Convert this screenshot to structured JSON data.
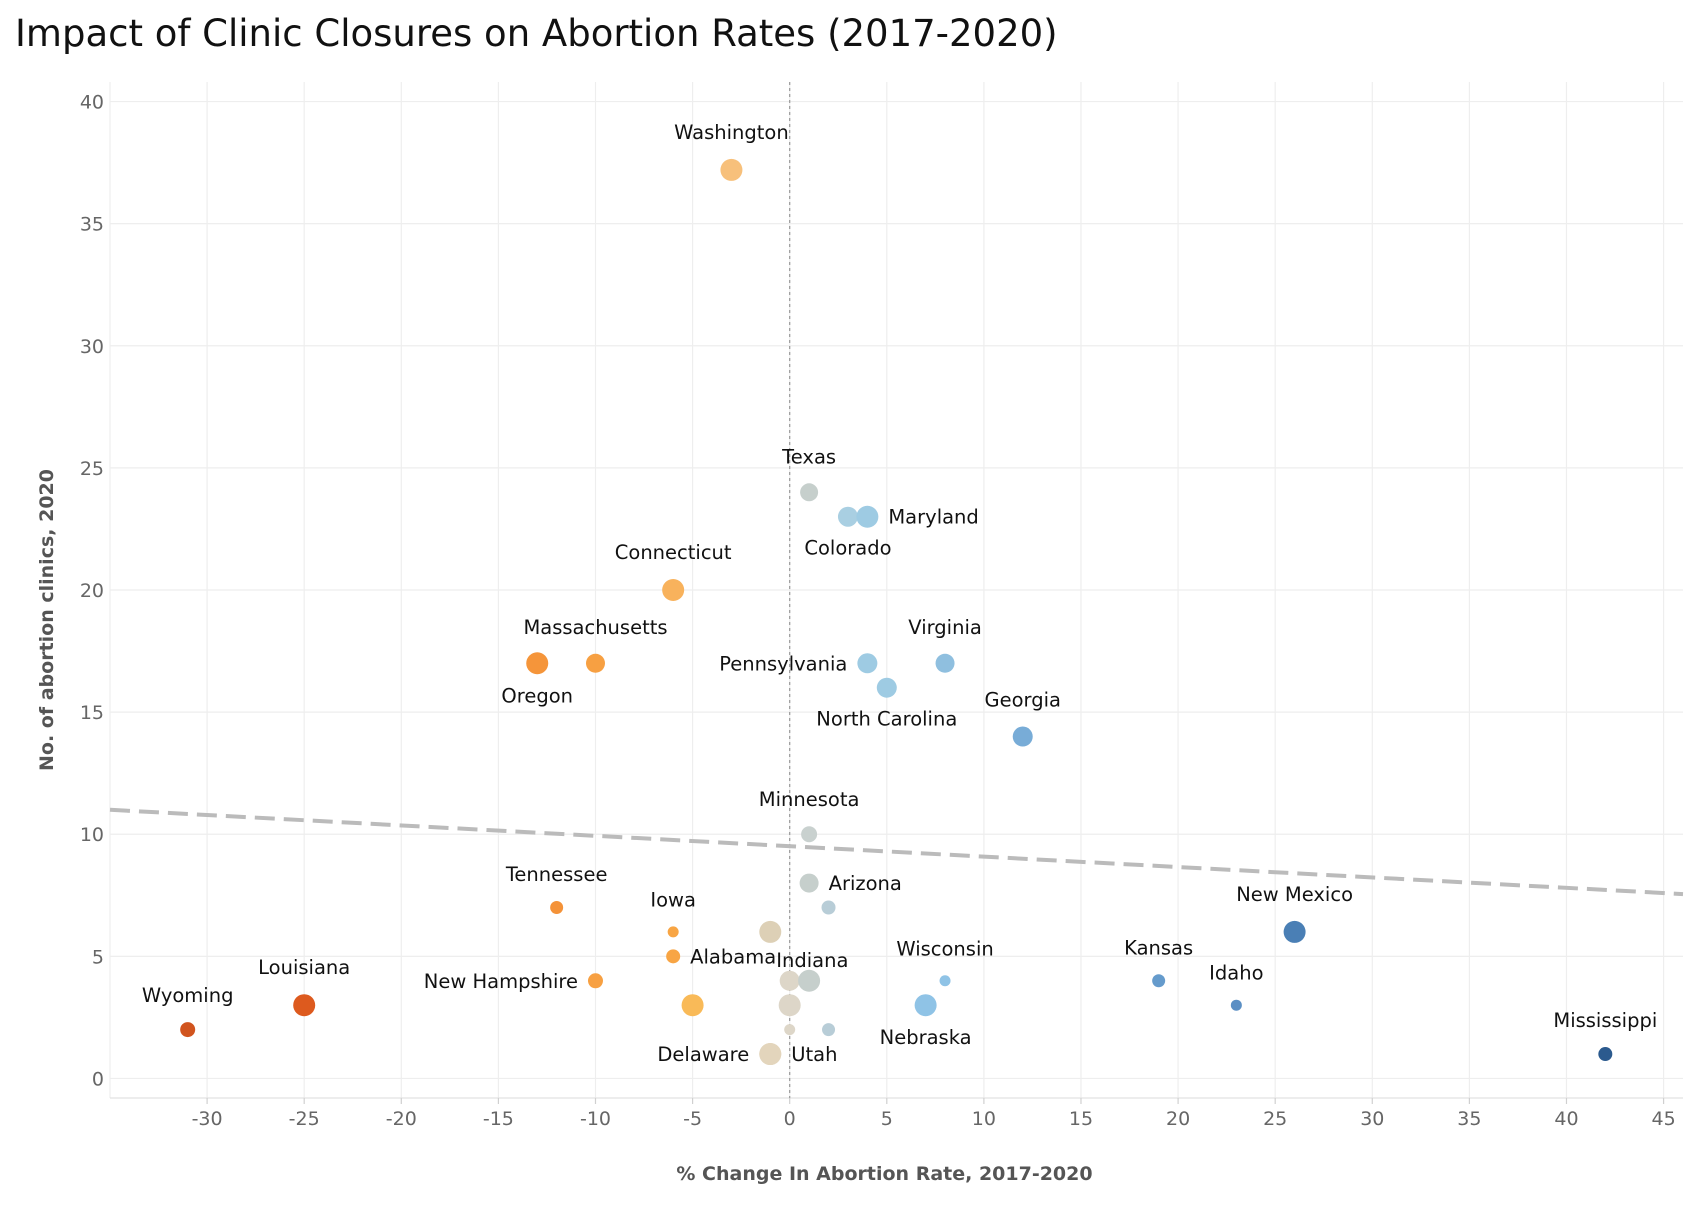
{
  "chart_data": {
    "type": "scatter",
    "title": "Impact of Clinic Closures on Abortion Rates (2017-2020)",
    "xlabel": "% Change In Abortion Rate, 2017-2020",
    "ylabel": "No. of abortion clinics, 2020",
    "xlim": [
      -35,
      46
    ],
    "ylim": [
      -0.8,
      40.8
    ],
    "x_ticks": [
      -30,
      -25,
      -20,
      -15,
      -10,
      -5,
      0,
      5,
      10,
      15,
      20,
      25,
      30,
      35,
      40,
      45
    ],
    "y_ticks": [
      0,
      5,
      10,
      15,
      20,
      25,
      30,
      35,
      40
    ],
    "grid": true,
    "reference_line": {
      "x": 0,
      "style": "dotted"
    },
    "trend_line": {
      "style": "dashed",
      "color": "#bbbbbb",
      "from": [
        -35,
        11.0
      ],
      "to": [
        46,
        7.55
      ]
    },
    "points": [
      {
        "label": "Washington",
        "x": -3,
        "y": 37.2,
        "size": 11,
        "color": "#f7c07b",
        "label_pos": "above"
      },
      {
        "label": "Texas",
        "x": 1,
        "y": 24,
        "size": 9,
        "color": "#c6cfcc",
        "label_pos": "above"
      },
      {
        "label": "Colorado",
        "x": 3,
        "y": 23,
        "size": 10,
        "color": "#a9cfe2",
        "label_pos": "below"
      },
      {
        "label": "Maryland",
        "x": 4,
        "y": 23,
        "size": 11,
        "color": "#9ecbe3",
        "label_pos": "right"
      },
      {
        "label": "Connecticut",
        "x": -6,
        "y": 20,
        "size": 11,
        "color": "#f8b25c",
        "label_pos": "above"
      },
      {
        "label": "Oregon",
        "x": -13,
        "y": 17,
        "size": 11,
        "color": "#f5953a",
        "label_pos": "below"
      },
      {
        "label": "Massachusetts",
        "x": -10,
        "y": 17,
        "size": 9.5,
        "color": "#f7a042",
        "label_pos": "above"
      },
      {
        "label": "Pennsylvania",
        "x": 4,
        "y": 17,
        "size": 10,
        "color": "#9ecbe3",
        "label_pos": "left"
      },
      {
        "label": "Virginia",
        "x": 8,
        "y": 17,
        "size": 9.5,
        "color": "#8fbfdf",
        "label_pos": "above"
      },
      {
        "label": "North Carolina",
        "x": 5,
        "y": 16,
        "size": 10,
        "color": "#9ecbe3",
        "label_pos": "below"
      },
      {
        "label": "Georgia",
        "x": 12,
        "y": 14,
        "size": 10,
        "color": "#78acd7",
        "label_pos": "above"
      },
      {
        "label": "Minnesota",
        "x": 1,
        "y": 10,
        "size": 8,
        "color": "#c9d1cf",
        "label_pos": "above"
      },
      {
        "label": "Arizona",
        "x": 1,
        "y": 8,
        "size": 9.5,
        "color": "#c6cfcc",
        "label_pos": "right"
      },
      {
        "label": "",
        "x": 2,
        "y": 7,
        "size": 7,
        "color": "#b8cdd7"
      },
      {
        "label": "Tennessee",
        "x": -12,
        "y": 7,
        "size": 6.5,
        "color": "#f49238",
        "label_pos": "above"
      },
      {
        "label": "Iowa",
        "x": -6,
        "y": 6,
        "size": 5.5,
        "color": "#f8a544",
        "label_pos": "above"
      },
      {
        "label": "Indiana",
        "x": -1,
        "y": 6,
        "size": 11,
        "color": "#ddd0b6",
        "label_pos": "below-right"
      },
      {
        "label": "New Mexico",
        "x": 26,
        "y": 6,
        "size": 11,
        "color": "#4a7fb5",
        "label_pos": "above"
      },
      {
        "label": "Alabama",
        "x": -6,
        "y": 5,
        "size": 7,
        "color": "#f8a544",
        "label_pos": "right"
      },
      {
        "label": "New Hampshire",
        "x": -10,
        "y": 4,
        "size": 7.5,
        "color": "#f7a042",
        "label_pos": "left"
      },
      {
        "label": "",
        "x": 0,
        "y": 4,
        "size": 10,
        "color": "#ddd6c8"
      },
      {
        "label": "",
        "x": 1,
        "y": 4,
        "size": 11,
        "color": "#c6cfcc"
      },
      {
        "label": "Wisconsin",
        "x": 8,
        "y": 4,
        "size": 5.5,
        "color": "#8fc3e6",
        "label_pos": "above"
      },
      {
        "label": "Kansas",
        "x": 19,
        "y": 4,
        "size": 6.5,
        "color": "#659bcc",
        "label_pos": "above"
      },
      {
        "label": "Wyoming",
        "x": -31,
        "y": 2,
        "size": 7.5,
        "color": "#d1541e",
        "label_pos": "above"
      },
      {
        "label": "Louisiana",
        "x": -25,
        "y": 3,
        "size": 11,
        "color": "#dd5a1e",
        "label_pos": "above"
      },
      {
        "label": "",
        "x": -5,
        "y": 3,
        "size": 11,
        "color": "#f9ba58"
      },
      {
        "label": "",
        "x": 0,
        "y": 3,
        "size": 11,
        "color": "#ddd6c8"
      },
      {
        "label": "Nebraska",
        "x": 7,
        "y": 3,
        "size": 11,
        "color": "#8fc3e6",
        "label_pos": "below"
      },
      {
        "label": "Idaho",
        "x": 23,
        "y": 3,
        "size": 5.5,
        "color": "#5b8fc4",
        "label_pos": "above"
      },
      {
        "label": "",
        "x": 0,
        "y": 2,
        "size": 5.5,
        "color": "#ddd6c8"
      },
      {
        "label": "",
        "x": 2,
        "y": 2,
        "size": 6.5,
        "color": "#b8cdd7"
      },
      {
        "label": "Delaware",
        "x": -1,
        "y": 1,
        "size": 11,
        "color": "#e3d5bc",
        "label_pos": "left"
      },
      {
        "label": "Utah",
        "x": -1,
        "y": 1,
        "size": 11,
        "color": "#e3d5bc",
        "label_pos": "right"
      },
      {
        "label": "Mississippi",
        "x": 42,
        "y": 1,
        "size": 7,
        "color": "#2b5a8e",
        "label_pos": "above"
      }
    ]
  }
}
